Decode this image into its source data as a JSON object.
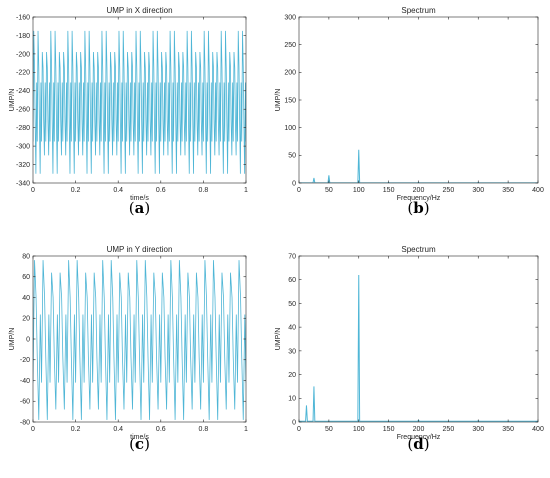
{
  "chart_data": [
    {
      "id": "a",
      "type": "line",
      "title": "UMP in X direction",
      "xlabel": "time/s",
      "ylabel": "UMP/N",
      "caption": {
        "open": "(",
        "letter": "a",
        "close": ")"
      },
      "xlim": [
        0,
        1
      ],
      "ylim": [
        -340,
        -160
      ],
      "xticks": [
        0,
        0.2,
        0.4,
        0.6,
        0.8,
        1
      ],
      "xtick_labels": [
        "0",
        "0.2",
        "0.4",
        "0.6",
        "0.8",
        "1"
      ],
      "yticks": [
        -340,
        -320,
        -300,
        -280,
        -260,
        -240,
        -220,
        -200,
        -180,
        -160
      ],
      "ytick_labels": [
        "-340",
        "-320",
        "-300",
        "-280",
        "-260",
        "-240",
        "-220",
        "-200",
        "-180",
        "-160"
      ],
      "color": "#4fb6d6",
      "signal": {
        "kind": "oscillation",
        "fundamental_hz": 50,
        "cycles": 50,
        "peak_max": -175,
        "peak_min": -198,
        "trough_max": -310,
        "trough_min": -330,
        "mid_band": [
          -215,
          -295
        ]
      }
    },
    {
      "id": "b",
      "type": "line",
      "title": "Spectrum",
      "xlabel": "Frequency/Hz",
      "ylabel": "UMP/N",
      "caption": {
        "open": "(",
        "letter": "b",
        "close": ")"
      },
      "xlim": [
        0,
        400
      ],
      "ylim": [
        0,
        300
      ],
      "xticks": [
        0,
        50,
        100,
        150,
        200,
        250,
        300,
        350,
        400
      ],
      "xtick_labels": [
        "0",
        "50",
        "100",
        "150",
        "200",
        "250",
        "300",
        "350",
        "400"
      ],
      "yticks": [
        0,
        50,
        100,
        150,
        200,
        250,
        300
      ],
      "ytick_labels": [
        "0",
        "50",
        "100",
        "150",
        "200",
        "250",
        "300"
      ],
      "color": "#4fb6d6",
      "peaks": [
        {
          "x": 25,
          "y": 9
        },
        {
          "x": 50,
          "y": 14
        },
        {
          "x": 100,
          "y": 60
        },
        {
          "x": 150,
          "y": 1
        },
        {
          "x": 200,
          "y": 1
        },
        {
          "x": 300,
          "y": 1
        }
      ]
    },
    {
      "id": "c",
      "type": "line",
      "title": "UMP in Y direction",
      "xlabel": "time/s",
      "ylabel": "UMP/N",
      "caption": {
        "open": "(",
        "letter": "c",
        "close": ")"
      },
      "xlim": [
        0,
        1
      ],
      "ylim": [
        -80,
        80
      ],
      "xticks": [
        0,
        0.2,
        0.4,
        0.6,
        0.8,
        1
      ],
      "xtick_labels": [
        "0",
        "0.2",
        "0.4",
        "0.6",
        "0.8",
        "1"
      ],
      "yticks": [
        -80,
        -60,
        -40,
        -20,
        0,
        20,
        40,
        60,
        80
      ],
      "ytick_labels": [
        "-80",
        "-60",
        "-40",
        "-20",
        "0",
        "20",
        "40",
        "60",
        "80"
      ],
      "color": "#4fb6d6",
      "signal": {
        "kind": "oscillation",
        "fundamental_hz": 25,
        "cycles": 25,
        "peak_max": 76,
        "peak_min": 64,
        "trough_max": -68,
        "trough_min": -78,
        "mid_band": [
          40,
          -42
        ]
      }
    },
    {
      "id": "d",
      "type": "line",
      "title": "Spectrum",
      "xlabel": "Frequency/Hz",
      "ylabel": "UMP/N",
      "caption": {
        "open": "(",
        "letter": "d",
        "close": ")"
      },
      "xlim": [
        0,
        400
      ],
      "ylim": [
        0,
        70
      ],
      "xticks": [
        0,
        50,
        100,
        150,
        200,
        250,
        300,
        350,
        400
      ],
      "xtick_labels": [
        "0",
        "50",
        "100",
        "150",
        "200",
        "250",
        "300",
        "350",
        "400"
      ],
      "yticks": [
        0,
        10,
        20,
        30,
        40,
        50,
        60,
        70
      ],
      "ytick_labels": [
        "0",
        "10",
        "20",
        "30",
        "40",
        "50",
        "60",
        "70"
      ],
      "color": "#4fb6d6",
      "peaks": [
        {
          "x": 12.5,
          "y": 7
        },
        {
          "x": 25,
          "y": 15
        },
        {
          "x": 100,
          "y": 62
        },
        {
          "x": 200,
          "y": 0.8
        },
        {
          "x": 300,
          "y": 0.6
        }
      ]
    }
  ]
}
